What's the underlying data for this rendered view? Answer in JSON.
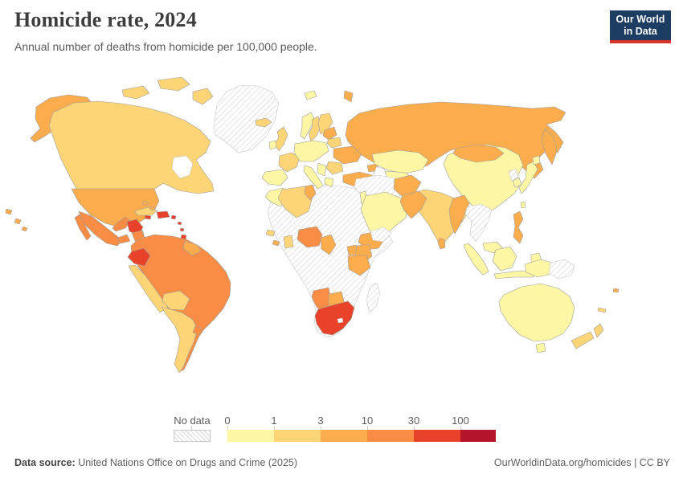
{
  "header": {
    "title": "Homicide rate, 2024",
    "subtitle": "Annual number of deaths from homicide per 100,000 people."
  },
  "logo": {
    "line1": "Our World",
    "line2": "in Data",
    "bg": "#1d3d63",
    "accent": "#d8352b"
  },
  "legend": {
    "no_data_label": "No data",
    "ticks": [
      "0",
      "1",
      "3",
      "10",
      "30",
      "100"
    ],
    "bar_bins": [
      "0-1",
      "1-3",
      "3-10",
      "10-30",
      "30-100",
      "100+"
    ],
    "bin_colors": {
      "0-1": "#fdf7a5",
      "1-3": "#fdd476",
      "3-10": "#fbac4d",
      "10-30": "#f98d45",
      "30-100": "#e8432a",
      "100+": "#b5142d",
      "no-data": "hatched"
    }
  },
  "footer": {
    "source_label": "Data source:",
    "source_value": " United Nations Office on Drugs and Crime (2025)",
    "right": "OurWorldinData.org/homicides | CC BY"
  },
  "chart_data": {
    "type": "choropleth",
    "title": "Homicide rate, 2024",
    "subtitle": "Annual number of deaths from homicide per 100,000 people.",
    "year": 2024,
    "unit": "deaths from homicide per 100,000 people",
    "legend_thresholds": [
      0,
      1,
      3,
      10,
      30,
      100
    ],
    "legend_labels": [
      "0-1",
      "1-3",
      "3-10",
      "10-30",
      "30-100",
      "100+",
      "No data"
    ],
    "regions": {
      "hawaii": "3-10",
      "alaska": "3-10",
      "canada": "1-3",
      "arctic-islands": "1-3",
      "greenland": "no-data",
      "usa": "3-10",
      "mexico": "10-30",
      "guatemala": "10-30",
      "belize-honduras": "30-100",
      "nicaragua": "10-30",
      "costa-rica-panama": "10-30",
      "cuba": "1-3",
      "bahamas": "3-10",
      "jamaica": "30-100",
      "hispaniola": "30-100",
      "puerto-rico": "30-100",
      "lesser-antilles": "30-100",
      "trinidad": "30-100",
      "south-america-north": "10-30",
      "guianas": "3-10",
      "ecuador": "30-100",
      "peru": "1-3",
      "bolivia": "1-3",
      "southern-cone": "1-3",
      "uruguay": "10-30",
      "iceland": "1-3",
      "norway": "0-1",
      "sweden": "1-3",
      "finland": "1-3",
      "svalbard": "0-1",
      "united-kingdom": "1-3",
      "ireland": "0-1",
      "france": "1-3",
      "iberia": "0-1",
      "central-europe": "0-1",
      "italy": "0-1",
      "baltics": "3-10",
      "belarus": "1-3",
      "ukraine": "3-10",
      "romania-bulgaria": "1-3",
      "balkans": "0-1",
      "greece": "0-1",
      "russia": "3-10",
      "turkey": "3-10",
      "caucasus": "3-10",
      "kazakhstan": "0-1",
      "central-asia": "0-1",
      "turkmenistan": "no-data",
      "iran-iraq": "no-data",
      "israel-jordan": "0-1",
      "arabia": "0-1",
      "yemen": "no-data",
      "afghanistan": "3-10",
      "pakistan": "3-10",
      "india": "1-3",
      "sri-lanka": "3-10",
      "china": "0-1",
      "mongolia": "3-10",
      "north-korea": "no-data",
      "south-korea": "0-1",
      "japan": "0-1",
      "taiwan": "0-1",
      "myanmar": "3-10",
      "indochina": "no-data",
      "malaysia": "0-1",
      "indonesia": "0-1",
      "philippines": "3-10",
      "western-new-guinea": "0-1",
      "papua-new-guinea": "no-data",
      "australia": "0-1",
      "new-zealand": "1-3",
      "fiji": "3-10",
      "new-caledonia": "1-3",
      "africa-interior": "no-data",
      "morocco": "0-1",
      "algeria": "1-3",
      "tunisia": "3-10",
      "senegal": "1-3",
      "liberia": "3-10",
      "ghana": "1-3",
      "nigeria": "10-30",
      "cameroon": "3-10",
      "ethiopia": "3-10",
      "uganda": "3-10",
      "kenya": "3-10",
      "tanzania": "3-10",
      "namibia": "10-30",
      "botswana": "3-10",
      "south-africa": "30-100",
      "madagascar": "no-data"
    }
  }
}
